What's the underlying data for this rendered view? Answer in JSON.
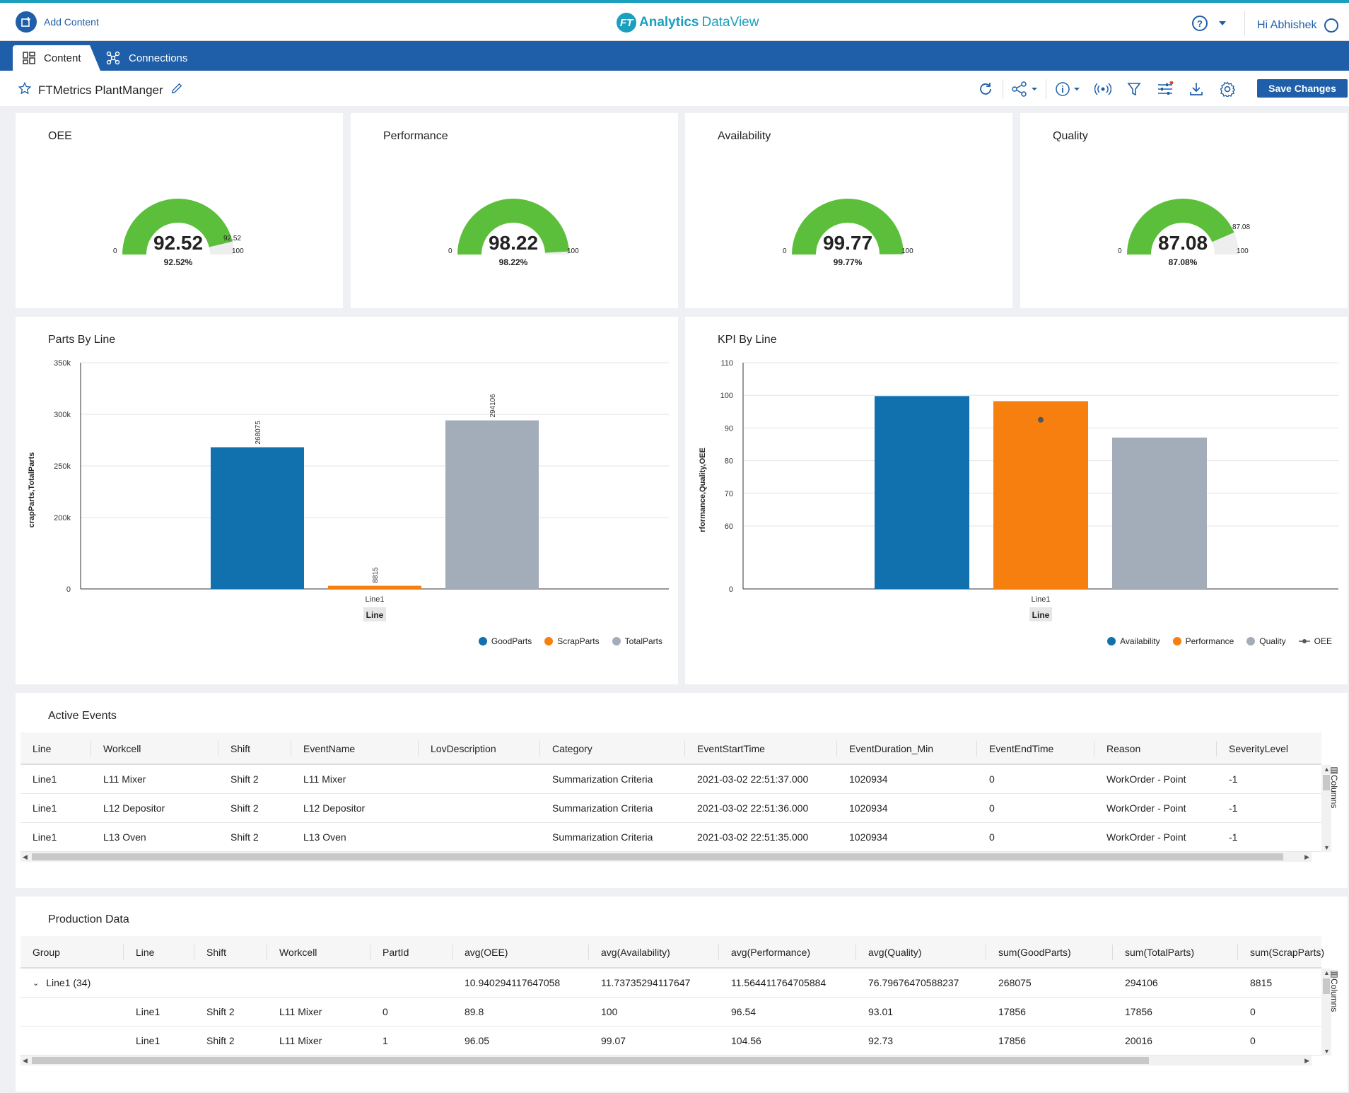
{
  "header": {
    "add_content": "Add Content",
    "brand_logo": "FT",
    "brand_name": "Analytics",
    "brand_suffix": "DataView",
    "help_icon": "?",
    "greeting": "Hi Abhishek"
  },
  "nav": {
    "tabs": [
      {
        "label": "Content",
        "icon": "dashboard-icon"
      },
      {
        "label": "Connections",
        "icon": "network-icon"
      }
    ]
  },
  "toolbar": {
    "title": "FTMetrics PlantManger",
    "save_label": "Save Changes",
    "icons": [
      "refresh-icon",
      "share-icon",
      "info-icon",
      "broadcast-icon",
      "filter-icon",
      "sliders-icon",
      "download-icon",
      "settings-icon"
    ]
  },
  "gauges": [
    {
      "title": "OEE",
      "value": "92.52",
      "pct": "92.52%",
      "min": "0",
      "max": "100",
      "mark": "92.52",
      "fraction": 0.9252
    },
    {
      "title": "Performance",
      "value": "98.22",
      "pct": "98.22%",
      "min": "0",
      "max": "100",
      "mark": "",
      "fraction": 0.9822
    },
    {
      "title": "Availability",
      "value": "99.77",
      "pct": "99.77%",
      "min": "0",
      "max": "100",
      "mark": "",
      "fraction": 0.9977
    },
    {
      "title": "Quality",
      "value": "87.08",
      "pct": "87.08%",
      "min": "0",
      "max": "100",
      "mark": "87.08",
      "fraction": 0.8708
    }
  ],
  "chart_data": [
    {
      "type": "bar",
      "title": "Parts By Line",
      "categories": [
        "Line1"
      ],
      "xlabel": "Line",
      "ylabel": "crapParts,TotalParts",
      "yticks": [
        "0",
        "200k",
        "250k",
        "300k",
        "350k"
      ],
      "series": [
        {
          "name": "GoodParts",
          "values": [
            268075
          ],
          "label": "268075",
          "color": "#1170ae"
        },
        {
          "name": "ScrapParts",
          "values": [
            8815
          ],
          "label": "8815",
          "color": "#f77f10"
        },
        {
          "name": "TotalParts",
          "values": [
            294106
          ],
          "label": "294106",
          "color": "#a3adb9"
        }
      ],
      "legend": "bottom-right"
    },
    {
      "type": "bar",
      "title": "KPI By Line",
      "categories": [
        "Line1"
      ],
      "xlabel": "Line",
      "ylabel": "rformance,Quality,OEE",
      "yticks": [
        "0",
        "60",
        "70",
        "80",
        "90",
        "100",
        "110"
      ],
      "series": [
        {
          "name": "Availability",
          "values": [
            99.77
          ],
          "color": "#1170ae"
        },
        {
          "name": "Performance",
          "values": [
            98.22
          ],
          "color": "#f77f10"
        },
        {
          "name": "Quality",
          "values": [
            87.08
          ],
          "color": "#a3adb9"
        },
        {
          "name": "OEE",
          "values": [
            92.52
          ],
          "color": "#555555",
          "kind": "line"
        }
      ],
      "legend": "bottom-right"
    }
  ],
  "active_events": {
    "title": "Active Events",
    "columns_label": "Columns",
    "headers": [
      "Line",
      "Workcell",
      "Shift",
      "EventName",
      "LovDescription",
      "Category",
      "EventStartTime",
      "EventDuration_Min",
      "EventEndTime",
      "Reason",
      "SeverityLevel"
    ],
    "rows": [
      [
        "Line1",
        "L11 Mixer",
        "Shift 2",
        "L11 Mixer",
        "",
        "Summarization Criteria",
        "2021-03-02 22:51:37.000",
        "1020934",
        "0",
        "WorkOrder - Point",
        "-1"
      ],
      [
        "Line1",
        "L12 Depositor",
        "Shift 2",
        "L12 Depositor",
        "",
        "Summarization Criteria",
        "2021-03-02 22:51:36.000",
        "1020934",
        "0",
        "WorkOrder - Point",
        "-1"
      ],
      [
        "Line1",
        "L13 Oven",
        "Shift 2",
        "L13 Oven",
        "",
        "Summarization Criteria",
        "2021-03-02 22:51:35.000",
        "1020934",
        "0",
        "WorkOrder - Point",
        "-1"
      ]
    ]
  },
  "production_data": {
    "title": "Production Data",
    "columns_label": "Columns",
    "headers": [
      "Group",
      "Line",
      "Shift",
      "Workcell",
      "PartId",
      "avg(OEE)",
      "avg(Availability)",
      "avg(Performance)",
      "avg(Quality)",
      "sum(GoodParts)",
      "sum(TotalParts)",
      "sum(ScrapParts)"
    ],
    "group_row": [
      "Line1 (34)",
      "",
      "",
      "",
      "",
      "10.940294117647058",
      "11.73735294117647",
      "11.564411764705884",
      "76.79676470588237",
      "268075",
      "294106",
      "8815"
    ],
    "rows": [
      [
        "",
        "Line1",
        "Shift 2",
        "L11 Mixer",
        "0",
        "89.8",
        "100",
        "96.54",
        "93.01",
        "17856",
        "17856",
        "0"
      ],
      [
        "",
        "Line1",
        "Shift 2",
        "L11 Mixer",
        "1",
        "96.05",
        "99.07",
        "104.56",
        "92.73",
        "17856",
        "20016",
        "0"
      ]
    ]
  }
}
